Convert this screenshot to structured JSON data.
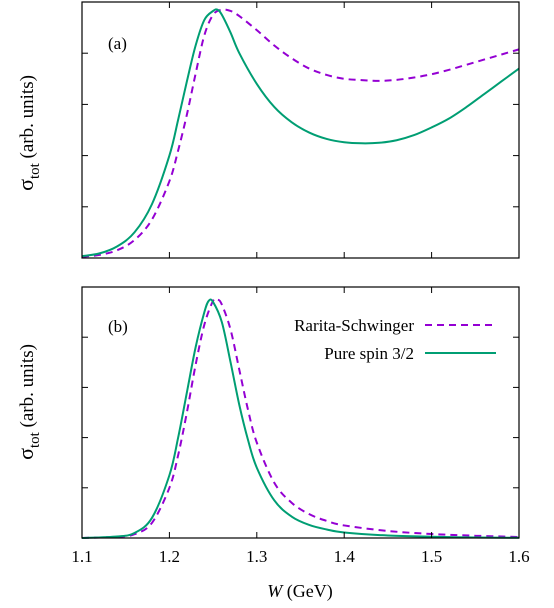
{
  "chart_data": [
    {
      "type": "line",
      "panel_label": "(a)",
      "ylabel_main": "σ",
      "ylabel_sub": "tot",
      "ylabel_units": " (arb. units)",
      "xlim": [
        1.1,
        1.6
      ],
      "ylim": [
        0,
        1.0
      ],
      "x_ticks": [
        1.1,
        1.2,
        1.3,
        1.4,
        1.5,
        1.6
      ],
      "y_ticks": [
        0.2,
        0.4,
        0.6,
        0.8
      ],
      "grid": false,
      "colors": {
        "rarita": "#9400d3",
        "pure": "#009e73"
      },
      "series": [
        {
          "name": "Rarita-Schwinger",
          "style": "dashed",
          "x": [
            1.1,
            1.12,
            1.14,
            1.16,
            1.18,
            1.2,
            1.21,
            1.22,
            1.23,
            1.24,
            1.25,
            1.26,
            1.27,
            1.28,
            1.3,
            1.32,
            1.34,
            1.36,
            1.38,
            1.4,
            1.42,
            1.44,
            1.46,
            1.48,
            1.5,
            1.52,
            1.54,
            1.56,
            1.58,
            1.6
          ],
          "y": [
            0.005,
            0.012,
            0.03,
            0.07,
            0.15,
            0.3,
            0.42,
            0.56,
            0.72,
            0.87,
            0.95,
            0.97,
            0.965,
            0.945,
            0.89,
            0.83,
            0.78,
            0.74,
            0.715,
            0.7,
            0.695,
            0.692,
            0.696,
            0.705,
            0.718,
            0.735,
            0.755,
            0.775,
            0.795,
            0.815
          ]
        },
        {
          "name": "Pure spin 3/2",
          "style": "solid",
          "x": [
            1.1,
            1.12,
            1.14,
            1.16,
            1.18,
            1.2,
            1.21,
            1.22,
            1.23,
            1.24,
            1.25,
            1.255,
            1.26,
            1.27,
            1.28,
            1.3,
            1.32,
            1.34,
            1.36,
            1.38,
            1.4,
            1.42,
            1.44,
            1.46,
            1.48,
            1.5,
            1.52,
            1.54,
            1.56,
            1.58,
            1.6
          ],
          "y": [
            0.007,
            0.018,
            0.045,
            0.1,
            0.21,
            0.4,
            0.54,
            0.69,
            0.83,
            0.93,
            0.965,
            0.97,
            0.95,
            0.88,
            0.8,
            0.68,
            0.59,
            0.53,
            0.49,
            0.465,
            0.452,
            0.448,
            0.45,
            0.46,
            0.48,
            0.51,
            0.545,
            0.59,
            0.64,
            0.69,
            0.74
          ]
        }
      ]
    },
    {
      "type": "line",
      "panel_label": "(b)",
      "ylabel_main": "σ",
      "ylabel_sub": "tot",
      "ylabel_units": " (arb. units)",
      "xlabel_italic": "W",
      "xlabel_units": " (GeV)",
      "xlim": [
        1.1,
        1.6
      ],
      "ylim": [
        0,
        1.0
      ],
      "x_ticks": [
        1.1,
        1.2,
        1.3,
        1.4,
        1.5,
        1.6
      ],
      "y_ticks": [
        0.2,
        0.4,
        0.6,
        0.8
      ],
      "grid": false,
      "legend_position": "top-right",
      "colors": {
        "rarita": "#9400d3",
        "pure": "#009e73"
      },
      "series": [
        {
          "name": "Rarita-Schwinger",
          "style": "dashed",
          "x": [
            1.1,
            1.14,
            1.16,
            1.18,
            1.2,
            1.21,
            1.22,
            1.23,
            1.24,
            1.25,
            1.255,
            1.26,
            1.27,
            1.28,
            1.29,
            1.3,
            1.32,
            1.34,
            1.36,
            1.38,
            1.4,
            1.45,
            1.5,
            1.55,
            1.6
          ],
          "y": [
            0.0,
            0.005,
            0.015,
            0.06,
            0.2,
            0.33,
            0.5,
            0.69,
            0.85,
            0.945,
            0.95,
            0.93,
            0.83,
            0.67,
            0.51,
            0.38,
            0.22,
            0.14,
            0.095,
            0.068,
            0.05,
            0.028,
            0.016,
            0.009,
            0.004
          ]
        },
        {
          "name": "Pure spin 3/2",
          "style": "solid",
          "x": [
            1.1,
            1.14,
            1.16,
            1.18,
            1.2,
            1.21,
            1.22,
            1.23,
            1.24,
            1.245,
            1.25,
            1.26,
            1.27,
            1.28,
            1.29,
            1.3,
            1.32,
            1.34,
            1.36,
            1.38,
            1.4,
            1.45,
            1.5,
            1.55,
            1.6
          ],
          "y": [
            0.0,
            0.006,
            0.02,
            0.08,
            0.25,
            0.4,
            0.58,
            0.76,
            0.9,
            0.945,
            0.94,
            0.86,
            0.7,
            0.53,
            0.39,
            0.28,
            0.15,
            0.085,
            0.052,
            0.034,
            0.022,
            0.01,
            0.005,
            0.002,
            0.001
          ]
        }
      ]
    }
  ]
}
